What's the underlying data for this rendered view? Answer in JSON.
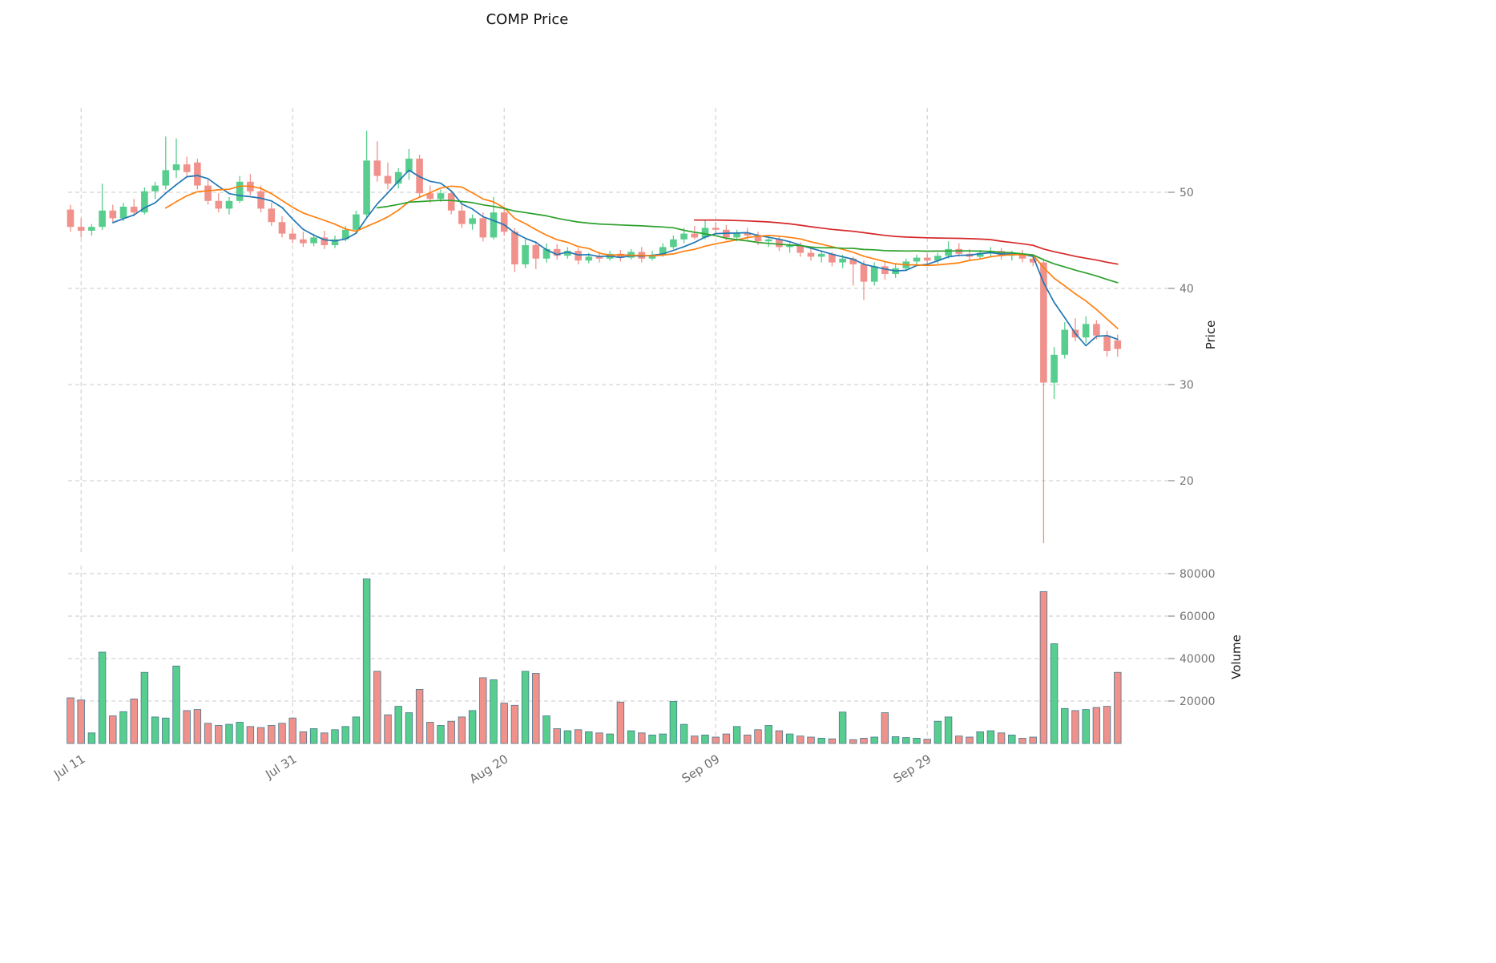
{
  "title": "COMP Price",
  "axes": {
    "price_label": "Price",
    "volume_label": "Volume"
  },
  "colors": {
    "up": "#57CE8D",
    "down": "#F0918B",
    "volume_edge": "#46788E",
    "grid": "#C9C9C9",
    "tick_mark": "#8A8A8A",
    "ma_colors": [
      "#1F77B4",
      "#FF7F0E",
      "#2CA02C",
      "#D62728"
    ]
  },
  "chart_data": {
    "type": "candlestick+volume",
    "title": "COMP Price",
    "ylabel_price": "Price",
    "ylabel_volume": "Volume",
    "grid": true,
    "legend": "none",
    "x_ticks": [
      {
        "index": 1,
        "label": "Jul 11"
      },
      {
        "index": 21,
        "label": "Jul 31"
      },
      {
        "index": 41,
        "label": "Aug 20"
      },
      {
        "index": 61,
        "label": "Sep 09"
      },
      {
        "index": 81,
        "label": "Sep 29"
      }
    ],
    "price_axis": {
      "ticks": [
        20,
        30,
        40,
        50
      ],
      "range": [
        12,
        58
      ]
    },
    "volume_axis": {
      "ticks": [
        20000,
        40000,
        60000,
        80000
      ],
      "range": [
        0,
        85000
      ]
    },
    "moving_averages": {
      "windows": [
        5,
        10,
        30,
        60
      ]
    },
    "dates": [
      "Jul 10",
      "Jul 11",
      "Jul 12",
      "Jul 13",
      "Jul 14",
      "Jul 15",
      "Jul 16",
      "Jul 17",
      "Jul 18",
      "Jul 19",
      "Jul 20",
      "Jul 21",
      "Jul 22",
      "Jul 23",
      "Jul 24",
      "Jul 25",
      "Jul 26",
      "Jul 27",
      "Jul 28",
      "Jul 29",
      "Jul 30",
      "Jul 31",
      "Aug 01",
      "Aug 02",
      "Aug 03",
      "Aug 04",
      "Aug 05",
      "Aug 06",
      "Aug 07",
      "Aug 08",
      "Aug 09",
      "Aug 10",
      "Aug 11",
      "Aug 12",
      "Aug 13",
      "Aug 14",
      "Aug 15",
      "Aug 16",
      "Aug 17",
      "Aug 18",
      "Aug 19",
      "Aug 20",
      "Aug 21",
      "Aug 22",
      "Aug 23",
      "Aug 24",
      "Aug 25",
      "Aug 26",
      "Aug 27",
      "Aug 28",
      "Aug 29",
      "Aug 30",
      "Aug 31",
      "Sep 01",
      "Sep 02",
      "Sep 03",
      "Sep 04",
      "Sep 05",
      "Sep 06",
      "Sep 07",
      "Sep 08",
      "Sep 09",
      "Sep 10",
      "Sep 11",
      "Sep 12",
      "Sep 13",
      "Sep 14",
      "Sep 15",
      "Sep 16",
      "Sep 17",
      "Sep 18",
      "Sep 19",
      "Sep 20",
      "Sep 21",
      "Sep 22",
      "Sep 23",
      "Sep 24",
      "Sep 25",
      "Sep 26",
      "Sep 27",
      "Sep 28",
      "Sep 29",
      "Sep 30",
      "Oct 01",
      "Oct 02",
      "Oct 03",
      "Oct 04",
      "Oct 05",
      "Oct 06",
      "Oct 07",
      "Oct 08",
      "Oct 09",
      "Oct 10",
      "Oct 11",
      "Oct 12",
      "Oct 13",
      "Oct 14",
      "Oct 15",
      "Oct 16",
      "Oct 17"
    ],
    "open": [
      48.2,
      46.4,
      46.0,
      46.4,
      48.1,
      47.3,
      48.5,
      47.9,
      50.1,
      50.7,
      52.3,
      52.9,
      53.1,
      50.7,
      49.1,
      48.3,
      49.1,
      51.1,
      50.1,
      48.3,
      46.9,
      45.7,
      45.1,
      44.7,
      45.3,
      44.5,
      45.1,
      46.1,
      47.7,
      53.3,
      51.7,
      50.9,
      52.1,
      53.5,
      49.9,
      49.3,
      49.9,
      48.1,
      46.7,
      47.3,
      45.3,
      47.9,
      45.9,
      42.5,
      44.5,
      43.1,
      44.1,
      43.4,
      43.9,
      42.9,
      43.3,
      43.1,
      43.6,
      43.2,
      43.8,
      43.1,
      43.5,
      44.3,
      45.1,
      45.7,
      45.3,
      46.3,
      46.1,
      45.3,
      45.8,
      45.5,
      44.9,
      45.1,
      44.3,
      44.5,
      43.7,
      43.3,
      43.6,
      42.7,
      43.1,
      42.5,
      40.7,
      42.3,
      41.5,
      42.1,
      42.8,
      43.2,
      42.9,
      43.4,
      44.1,
      43.6,
      43.3,
      43.7,
      43.9,
      43.4,
      43.6,
      43.1,
      42.7,
      30.2,
      33.1,
      35.7,
      34.9,
      36.3,
      35.1,
      34.6
    ],
    "high": [
      48.7,
      47.3,
      46.7,
      50.9,
      48.7,
      48.9,
      49.3,
      50.5,
      51.1,
      55.8,
      55.6,
      53.7,
      53.5,
      51.3,
      49.9,
      49.5,
      51.7,
      51.9,
      50.7,
      48.9,
      47.5,
      46.3,
      45.9,
      45.7,
      46.0,
      45.5,
      46.5,
      48.1,
      56.4,
      55.3,
      53.1,
      52.5,
      54.5,
      53.9,
      50.7,
      50.3,
      50.1,
      48.7,
      47.7,
      47.9,
      49.5,
      48.5,
      46.3,
      45.1,
      44.9,
      44.7,
      44.6,
      44.3,
      44.2,
      43.7,
      43.8,
      43.9,
      44.0,
      44.1,
      44.3,
      43.9,
      44.7,
      45.5,
      46.3,
      46.5,
      47.1,
      46.9,
      46.6,
      46.1,
      46.3,
      45.9,
      45.4,
      45.5,
      44.9,
      44.8,
      44.3,
      43.9,
      43.8,
      43.5,
      43.3,
      42.9,
      42.7,
      42.8,
      42.5,
      43.1,
      43.5,
      43.6,
      43.7,
      44.9,
      44.7,
      44.1,
      44.0,
      44.3,
      44.2,
      43.9,
      44.0,
      43.5,
      43.1,
      33.9,
      36.5,
      36.9,
      37.1,
      36.7,
      35.6,
      35.2
    ],
    "low": [
      45.9,
      45.3,
      45.5,
      46.1,
      46.9,
      47.0,
      47.5,
      47.7,
      49.3,
      50.3,
      51.5,
      51.7,
      50.3,
      48.7,
      47.9,
      47.7,
      48.9,
      49.7,
      47.9,
      46.5,
      45.3,
      44.7,
      44.3,
      44.4,
      44.1,
      44.2,
      44.9,
      45.8,
      47.4,
      51.1,
      50.3,
      50.4,
      51.3,
      49.5,
      48.9,
      49.0,
      47.7,
      46.3,
      46.1,
      44.9,
      45.1,
      45.5,
      41.7,
      42.1,
      42.0,
      42.7,
      43.0,
      43.1,
      42.5,
      42.6,
      42.7,
      42.9,
      42.8,
      43.0,
      42.7,
      42.9,
      43.3,
      44.1,
      44.7,
      45.1,
      45.1,
      45.7,
      45.0,
      44.9,
      45.1,
      44.5,
      44.3,
      43.9,
      43.7,
      43.3,
      42.9,
      42.7,
      42.3,
      42.1,
      40.3,
      38.8,
      40.3,
      40.9,
      41.1,
      41.8,
      42.3,
      42.5,
      42.6,
      43.1,
      43.3,
      42.9,
      43.0,
      43.2,
      43.0,
      42.9,
      42.7,
      42.3,
      13.5,
      28.5,
      32.7,
      34.5,
      34.3,
      34.7,
      32.9,
      32.9
    ],
    "close": [
      46.4,
      46.0,
      46.4,
      48.1,
      47.3,
      48.5,
      47.9,
      50.1,
      50.7,
      52.3,
      52.9,
      52.1,
      50.7,
      49.1,
      48.3,
      49.1,
      51.1,
      50.1,
      48.3,
      46.9,
      45.7,
      45.1,
      44.7,
      45.3,
      44.5,
      45.1,
      46.1,
      47.7,
      53.3,
      51.7,
      50.9,
      52.1,
      53.5,
      49.9,
      49.3,
      49.9,
      48.1,
      46.7,
      47.3,
      45.3,
      47.9,
      45.9,
      42.5,
      44.5,
      43.1,
      44.1,
      43.4,
      43.9,
      42.9,
      43.3,
      43.1,
      43.6,
      43.2,
      43.8,
      43.1,
      43.5,
      44.3,
      45.1,
      45.7,
      45.3,
      46.3,
      46.1,
      45.3,
      45.8,
      45.5,
      44.9,
      45.1,
      44.3,
      44.5,
      43.7,
      43.3,
      43.6,
      42.7,
      43.1,
      42.5,
      40.7,
      42.3,
      41.5,
      42.1,
      42.8,
      43.2,
      42.9,
      43.4,
      44.1,
      43.6,
      43.3,
      43.7,
      43.9,
      43.4,
      43.6,
      43.1,
      42.7,
      30.2,
      33.1,
      35.7,
      34.9,
      36.3,
      35.1,
      33.5,
      33.7
    ],
    "volume": [
      21500,
      20500,
      5000,
      43000,
      13000,
      15000,
      21000,
      33500,
      12500,
      12000,
      36500,
      15500,
      16000,
      9500,
      8500,
      9000,
      10000,
      8000,
      7500,
      8500,
      9500,
      12000,
      5500,
      7000,
      5000,
      6500,
      8000,
      12500,
      77500,
      34000,
      13500,
      17500,
      14500,
      25500,
      10000,
      8500,
      10500,
      12500,
      15500,
      31000,
      30000,
      19000,
      18000,
      34000,
      33000,
      13000,
      7000,
      6000,
      6500,
      5500,
      5000,
      4500,
      19500,
      6000,
      5000,
      4000,
      4500,
      19800,
      9000,
      3500,
      4000,
      3000,
      4500,
      8000,
      4000,
      6500,
      8500,
      6000,
      4500,
      3500,
      3000,
      2500,
      2200,
      14800,
      1800,
      2500,
      3000,
      14500,
      3200,
      2800,
      2500,
      2000,
      10500,
      12500,
      3500,
      3000,
      5500,
      6000,
      5000,
      4000,
      2500,
      3000,
      71500,
      47000,
      16500,
      15500,
      16000,
      17000,
      17500,
      33500
    ]
  }
}
